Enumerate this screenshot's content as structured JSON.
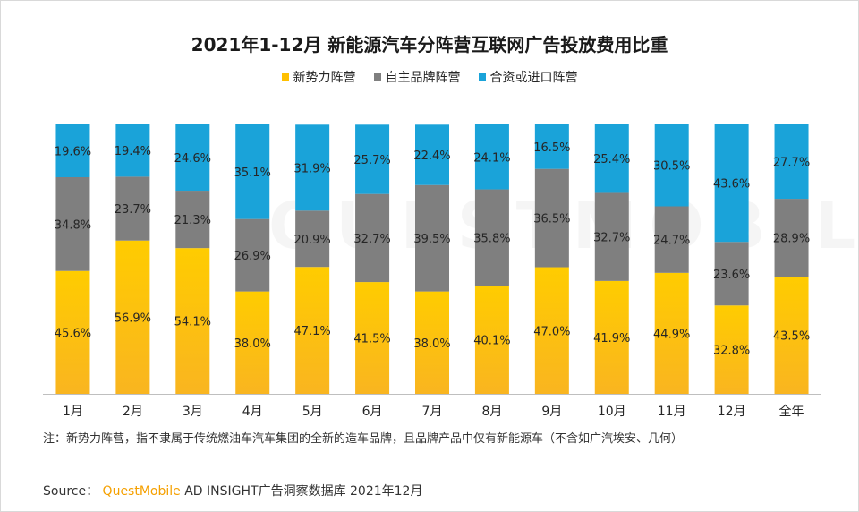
{
  "title": "2021年1-12月 新能源汽车分阵营互联网广告投放费用比重",
  "legend": {
    "items": [
      {
        "label": "新势力阵营",
        "color": "#ffc000"
      },
      {
        "label": "自主品牌阵营",
        "color": "#7f7f7f"
      },
      {
        "label": "合资或进口阵营",
        "color": "#1aa3d9"
      }
    ]
  },
  "note": "注：新势力阵营，指不隶属于传统燃油车汽车集团的全新的造车品牌，且品牌产品中仅有新能源车（不含如广汽埃安、几何）",
  "source": {
    "prefix": "Source：",
    "brand": "QuestMobile",
    "rest": "AD INSIGHT广告洞察数据库 2021年12月"
  },
  "watermark": "QUESTMOBILE",
  "chart_data": {
    "type": "bar",
    "stacked": true,
    "percent": true,
    "categories": [
      "1月",
      "2月",
      "3月",
      "4月",
      "5月",
      "6月",
      "7月",
      "8月",
      "9月",
      "10月",
      "11月",
      "12月",
      "全年"
    ],
    "series": [
      {
        "name": "新势力阵营",
        "color": "#ffc000",
        "values": [
          45.6,
          56.9,
          54.1,
          38.0,
          47.1,
          41.5,
          38.0,
          40.1,
          47.0,
          41.9,
          44.9,
          32.8,
          43.5
        ]
      },
      {
        "name": "自主品牌阵营",
        "color": "#7f7f7f",
        "values": [
          34.8,
          23.7,
          21.3,
          26.9,
          20.9,
          32.7,
          39.5,
          35.8,
          36.5,
          32.7,
          24.7,
          23.6,
          28.9
        ]
      },
      {
        "name": "合资或进口阵营",
        "color": "#1aa3d9",
        "values": [
          19.6,
          19.4,
          24.6,
          35.1,
          31.9,
          25.7,
          22.4,
          24.1,
          16.5,
          25.4,
          30.5,
          43.6,
          27.7
        ]
      }
    ],
    "ylim": [
      0,
      100
    ],
    "grid": false,
    "legend_position": "top"
  }
}
